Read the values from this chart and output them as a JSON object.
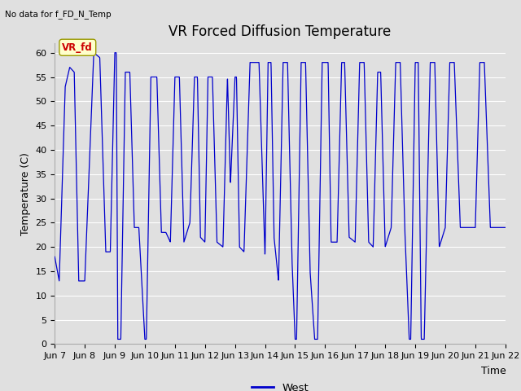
{
  "title": "VR Forced Diffusion Temperature",
  "subtitle": "No data for f_FD_N_Temp",
  "ylabel": "Temperature (C)",
  "xlabel": "Time",
  "ylim": [
    0,
    62
  ],
  "yticks": [
    0,
    5,
    10,
    15,
    20,
    25,
    30,
    35,
    40,
    45,
    50,
    55,
    60
  ],
  "xtick_labels": [
    "Jun 7",
    "Jun 8",
    "Jun 9",
    "Jun 10",
    "Jun 11",
    "Jun 12",
    "Jun 13",
    "Jun 14",
    "Jun 15",
    "Jun 16",
    "Jun 17",
    "Jun 18",
    "Jun 19",
    "Jun 20",
    "Jun 21",
    "Jun 22"
  ],
  "line_color": "#0000cc",
  "line_label": "West",
  "legend_label_box_color": "#ffffcc",
  "legend_label_text_color": "#cc0000",
  "legend_label_text": "VR_fd",
  "bg_color": "#e0e0e0",
  "plot_bg_color": "#e0e0e0",
  "grid_color": "#ffffff",
  "title_fontsize": 12,
  "axis_label_fontsize": 9,
  "tick_fontsize": 8,
  "fig_bg_color": "#e0e0e0",
  "waveform_segments": [
    {
      "t": 0.0,
      "v": 18
    },
    {
      "t": 0.15,
      "v": 13
    },
    {
      "t": 0.35,
      "v": 53
    },
    {
      "t": 0.5,
      "v": 57
    },
    {
      "t": 0.65,
      "v": 56
    },
    {
      "t": 0.8,
      "v": 13
    },
    {
      "t": 1.0,
      "v": 13
    },
    {
      "t": 1.3,
      "v": 60
    },
    {
      "t": 1.5,
      "v": 59
    },
    {
      "t": 1.7,
      "v": 19
    },
    {
      "t": 1.85,
      "v": 19
    },
    {
      "t": 2.0,
      "v": 60
    },
    {
      "t": 2.05,
      "v": 60
    },
    {
      "t": 2.1,
      "v": 1
    },
    {
      "t": 2.2,
      "v": 1
    },
    {
      "t": 2.35,
      "v": 56
    },
    {
      "t": 2.5,
      "v": 56
    },
    {
      "t": 2.65,
      "v": 24
    },
    {
      "t": 2.8,
      "v": 24
    },
    {
      "t": 3.0,
      "v": 1
    },
    {
      "t": 3.05,
      "v": 1
    },
    {
      "t": 3.2,
      "v": 55
    },
    {
      "t": 3.4,
      "v": 55
    },
    {
      "t": 3.55,
      "v": 23
    },
    {
      "t": 3.7,
      "v": 23
    },
    {
      "t": 3.85,
      "v": 21
    },
    {
      "t": 4.0,
      "v": 55
    },
    {
      "t": 4.15,
      "v": 55
    },
    {
      "t": 4.3,
      "v": 21
    },
    {
      "t": 4.5,
      "v": 25
    },
    {
      "t": 4.65,
      "v": 55
    },
    {
      "t": 4.75,
      "v": 55
    },
    {
      "t": 4.85,
      "v": 22
    },
    {
      "t": 5.0,
      "v": 21
    },
    {
      "t": 5.1,
      "v": 55
    },
    {
      "t": 5.25,
      "v": 55
    },
    {
      "t": 5.4,
      "v": 21
    },
    {
      "t": 5.6,
      "v": 20
    },
    {
      "t": 5.75,
      "v": 55
    },
    {
      "t": 5.85,
      "v": 33
    },
    {
      "t": 6.0,
      "v": 55
    },
    {
      "t": 6.05,
      "v": 55
    },
    {
      "t": 6.15,
      "v": 20
    },
    {
      "t": 6.3,
      "v": 19
    },
    {
      "t": 6.5,
      "v": 58
    },
    {
      "t": 6.65,
      "v": 58
    },
    {
      "t": 6.8,
      "v": 58
    },
    {
      "t": 7.0,
      "v": 18
    },
    {
      "t": 7.1,
      "v": 58
    },
    {
      "t": 7.2,
      "v": 58
    },
    {
      "t": 7.3,
      "v": 22
    },
    {
      "t": 7.45,
      "v": 13
    },
    {
      "t": 7.6,
      "v": 58
    },
    {
      "t": 7.75,
      "v": 58
    },
    {
      "t": 7.9,
      "v": 17
    },
    {
      "t": 8.0,
      "v": 1
    },
    {
      "t": 8.05,
      "v": 1
    },
    {
      "t": 8.2,
      "v": 58
    },
    {
      "t": 8.35,
      "v": 58
    },
    {
      "t": 8.5,
      "v": 15
    },
    {
      "t": 8.65,
      "v": 1
    },
    {
      "t": 8.75,
      "v": 1
    },
    {
      "t": 8.9,
      "v": 58
    },
    {
      "t": 9.0,
      "v": 58
    },
    {
      "t": 9.1,
      "v": 58
    },
    {
      "t": 9.2,
      "v": 21
    },
    {
      "t": 9.4,
      "v": 21
    },
    {
      "t": 9.55,
      "v": 58
    },
    {
      "t": 9.65,
      "v": 58
    },
    {
      "t": 9.8,
      "v": 22
    },
    {
      "t": 10.0,
      "v": 21
    },
    {
      "t": 10.15,
      "v": 58
    },
    {
      "t": 10.3,
      "v": 58
    },
    {
      "t": 10.45,
      "v": 21
    },
    {
      "t": 10.6,
      "v": 20
    },
    {
      "t": 10.75,
      "v": 56
    },
    {
      "t": 10.85,
      "v": 56
    },
    {
      "t": 11.0,
      "v": 20
    },
    {
      "t": 11.2,
      "v": 24
    },
    {
      "t": 11.35,
      "v": 58
    },
    {
      "t": 11.5,
      "v": 58
    },
    {
      "t": 11.65,
      "v": 24
    },
    {
      "t": 11.8,
      "v": 1
    },
    {
      "t": 11.85,
      "v": 1
    },
    {
      "t": 12.0,
      "v": 58
    },
    {
      "t": 12.1,
      "v": 58
    },
    {
      "t": 12.2,
      "v": 1
    },
    {
      "t": 12.3,
      "v": 1
    },
    {
      "t": 12.5,
      "v": 58
    },
    {
      "t": 12.65,
      "v": 58
    },
    {
      "t": 12.8,
      "v": 20
    },
    {
      "t": 13.0,
      "v": 24
    },
    {
      "t": 13.15,
      "v": 58
    },
    {
      "t": 13.3,
      "v": 58
    },
    {
      "t": 13.5,
      "v": 24
    },
    {
      "t": 14.0,
      "v": 24
    },
    {
      "t": 14.15,
      "v": 58
    },
    {
      "t": 14.3,
      "v": 58
    },
    {
      "t": 14.5,
      "v": 24
    },
    {
      "t": 15.0,
      "v": 24
    }
  ]
}
